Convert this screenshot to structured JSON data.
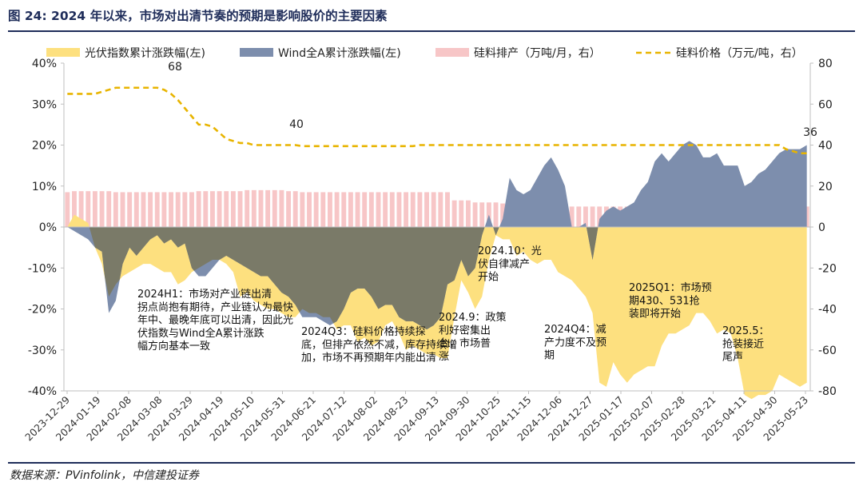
{
  "header": {
    "title": "图 24: 2024 年以来，市场对出清节奏的预期是影响股价的主要因素"
  },
  "footer": {
    "source": "数据来源：PVinfolink，中信建投证券"
  },
  "chart_data": {
    "type": "area",
    "legend": [
      "光伏指数累计涨跌幅(左)",
      "Wind全A累计涨跌幅(左)",
      "硅料排产（万吨/月，右）",
      "硅料价格（万元/吨，右）"
    ],
    "legend_placement": "top",
    "colors": {
      "pv": "#fde07f",
      "winda": "#7d8ead",
      "overlap": "#7a7a68",
      "production": "#f7c6c7",
      "price": "#e8b400"
    },
    "y_left": {
      "ylim": [
        -40,
        40
      ],
      "ticks": [
        "40%",
        "30%",
        "20%",
        "10%",
        "0%",
        "-10%",
        "-20%",
        "-30%",
        "-40%"
      ]
    },
    "y_right": {
      "ylim": [
        -80,
        80
      ],
      "ticks": [
        "80",
        "60",
        "40",
        "20",
        "0",
        "-20",
        "-40",
        "-60",
        "-80"
      ]
    },
    "x_tick_labels": [
      "2023-12-29",
      "2024-01-19",
      "2024-02-08",
      "2024-03-08",
      "2024-03-29",
      "2024-04-19",
      "2024-05-10",
      "2024-05-31",
      "2024-06-21",
      "2024-07-12",
      "2024-08-02",
      "2024-08-23",
      "2024-09-13",
      "2024-09-30",
      "2024-10-25",
      "2024-11-15",
      "2024-12-06",
      "2024-12-27",
      "2025-01-17",
      "2025-02-07",
      "2025-02-28",
      "2025-03-21",
      "2025-04-11",
      "2025-04-30",
      "2025-05-23"
    ],
    "pv_index": [
      0,
      3,
      2,
      1,
      -5,
      -9,
      -17,
      -14,
      -12,
      -11,
      -10,
      -9,
      -9,
      -10,
      -11,
      -11,
      -14,
      -13,
      -11,
      -10,
      -9,
      -8,
      -8,
      -9,
      -11,
      -17,
      -16,
      -18,
      -19,
      -20,
      -20,
      -21,
      -22,
      -22,
      -20,
      -21,
      -21,
      -22,
      -22,
      -25,
      -24,
      -24,
      -28,
      -27,
      -29,
      -28,
      -24,
      -23,
      -26,
      -30,
      -29,
      -30,
      -31,
      -31,
      -32,
      -32,
      -22,
      -13,
      -16,
      -20,
      -17,
      -8,
      -2,
      -3,
      -3,
      -7,
      -6,
      -8,
      -9,
      -8,
      -8,
      -11,
      -12,
      -13,
      -15,
      -17,
      -21,
      -38,
      -39,
      -33,
      -36,
      -38,
      -36,
      -35,
      -34,
      -34,
      -29,
      -26,
      -26,
      -25,
      -24,
      -21,
      -21,
      -23,
      -26,
      -25,
      -26,
      -32,
      -41,
      -42,
      -41,
      -41,
      -40,
      -36,
      -37,
      -38,
      -39,
      -38
    ],
    "winda": [
      0,
      -1,
      -2,
      -3,
      -5,
      -6,
      -21,
      -18,
      -9,
      -5,
      -7,
      -5,
      -3,
      -2,
      -4,
      -3,
      -5,
      -4,
      -10,
      -12,
      -12,
      -10,
      -8,
      -7,
      -8,
      -9,
      -10,
      -11,
      -12,
      -12,
      -14,
      -16,
      -17,
      -19,
      -22,
      -22,
      -22,
      -23,
      -24,
      -23,
      -20,
      -16,
      -15,
      -15,
      -17,
      -20,
      -19,
      -19,
      -22,
      -23,
      -23,
      -24,
      -25,
      -24,
      -22,
      -14,
      -13,
      -8,
      -12,
      -10,
      -2,
      3,
      -2,
      2,
      12,
      9,
      8,
      9,
      12,
      15,
      17,
      14,
      10,
      0,
      0,
      1,
      -8,
      2,
      4,
      5,
      4,
      5,
      6,
      9,
      11,
      16,
      18,
      16,
      18,
      20,
      21,
      20,
      17,
      17,
      18,
      15,
      15,
      15,
      10,
      11,
      13,
      14,
      16,
      18,
      19,
      19,
      19,
      20
    ],
    "production": [
      17,
      17.5,
      17.5,
      17.5,
      17.5,
      17.5,
      17.5,
      17,
      17,
      17,
      17,
      17,
      17,
      17,
      17,
      17,
      17,
      17,
      17,
      17.5,
      17.5,
      17.5,
      17.5,
      17.5,
      17.5,
      17.5,
      18,
      18,
      18,
      18,
      18,
      18,
      17.5,
      17.5,
      17,
      17,
      17,
      17,
      17,
      17,
      17,
      17,
      17,
      17,
      17,
      17,
      17,
      17,
      17,
      17,
      17,
      17,
      17,
      17,
      17,
      17,
      13,
      13,
      13,
      12,
      12,
      12,
      12,
      11.5,
      11.5,
      11.5,
      11.5,
      11.5,
      11,
      10.5,
      10.5,
      10.5,
      10,
      10,
      10,
      10,
      10,
      10,
      10,
      10,
      10,
      10,
      10,
      10,
      10,
      10,
      10,
      10,
      10,
      10,
      10,
      10,
      10,
      10,
      10,
      10,
      10,
      10,
      10,
      10,
      10,
      10,
      10,
      10,
      10,
      10,
      10,
      10
    ],
    "price": [
      65,
      65,
      65,
      65,
      65,
      66,
      67,
      68,
      68,
      68,
      68,
      68,
      68,
      68,
      67,
      65,
      62,
      58,
      54,
      50,
      50,
      49,
      46,
      43,
      42,
      41,
      41,
      40,
      40,
      40,
      40,
      40,
      40,
      40,
      39.5,
      39.5,
      39.5,
      39.5,
      39.5,
      39.5,
      39.5,
      39.5,
      39.5,
      39.5,
      39.5,
      39.5,
      39.5,
      39.5,
      39.5,
      39.5,
      39.5,
      40,
      40,
      40,
      40,
      40,
      40,
      40,
      40,
      40,
      40,
      40,
      40,
      40,
      40,
      40,
      40,
      40,
      40,
      40,
      40,
      40,
      40,
      40,
      40,
      40,
      40,
      40,
      40,
      40,
      40,
      40,
      40,
      40,
      40,
      40,
      40,
      40,
      40,
      40,
      40,
      40,
      40,
      40,
      40,
      40,
      40,
      40,
      40,
      40,
      40,
      40,
      40,
      40,
      38,
      37,
      36,
      36
    ],
    "price_labels": [
      "68",
      "40",
      "36"
    ],
    "annotations": [
      "2024H1：市场对产业链出清拐点尚抱有期待，产业链认为最快年中、最晚年底可以出清，因此光伏指数与Wind全A累计涨跌幅方向基本一致",
      "2024Q3：硅料价格持续探底，但排产依然不减，库存持续增加，市场不再预期年内能出清",
      "2024.9：政策利好密集出台，市场普涨",
      "2024.10：光伏自律减产开始",
      "2024Q4：减产力度不及预期",
      "2025Q1：市场预期430、531抢装即将开始",
      "2025.5：抢装接近尾声"
    ]
  }
}
